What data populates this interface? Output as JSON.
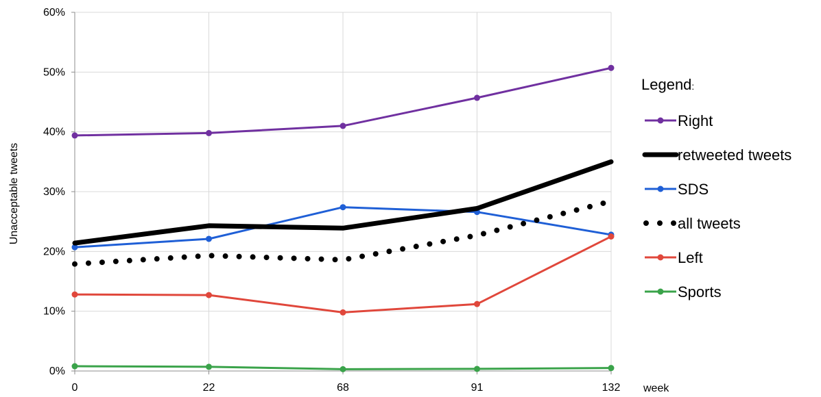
{
  "chart_data": {
    "type": "line",
    "title": "",
    "xlabel": "week",
    "ylabel": "Unacceptable tweets",
    "x": [
      0,
      22,
      68,
      91,
      132
    ],
    "x_tick_labels": [
      "0",
      "22",
      "68",
      "91",
      "132"
    ],
    "ylim": [
      0,
      60
    ],
    "y_tick_labels": [
      "0%",
      "10%",
      "20%",
      "30%",
      "40%",
      "50%",
      "60%"
    ],
    "grid": "vertical and horizontal",
    "legend": {
      "title": "Legend",
      "title_suffix": ":",
      "placement": "right"
    },
    "series": [
      {
        "name": "Right",
        "color": "#7030a0",
        "style": "thin-marker",
        "values": [
          39.4,
          39.8,
          41.0,
          45.7,
          50.7
        ]
      },
      {
        "name": "retweeted tweets",
        "color": "#000000",
        "style": "thick",
        "values": [
          21.4,
          24.3,
          23.9,
          27.2,
          35.0
        ]
      },
      {
        "name": "SDS",
        "color": "#1f5fd6",
        "style": "thin-marker",
        "values": [
          20.7,
          22.1,
          27.4,
          26.6,
          22.8
        ]
      },
      {
        "name": "all tweets",
        "color": "#000000",
        "style": "dotted",
        "values": [
          17.9,
          19.3,
          18.6,
          22.7,
          28.4
        ]
      },
      {
        "name": "Left",
        "color": "#e0473b",
        "style": "thin-marker",
        "values": [
          12.8,
          12.7,
          9.8,
          11.2,
          22.5
        ]
      },
      {
        "name": "Sports",
        "color": "#3aa34a",
        "style": "thin-marker",
        "values": [
          0.8,
          0.7,
          0.3,
          0.35,
          0.5
        ]
      }
    ]
  }
}
